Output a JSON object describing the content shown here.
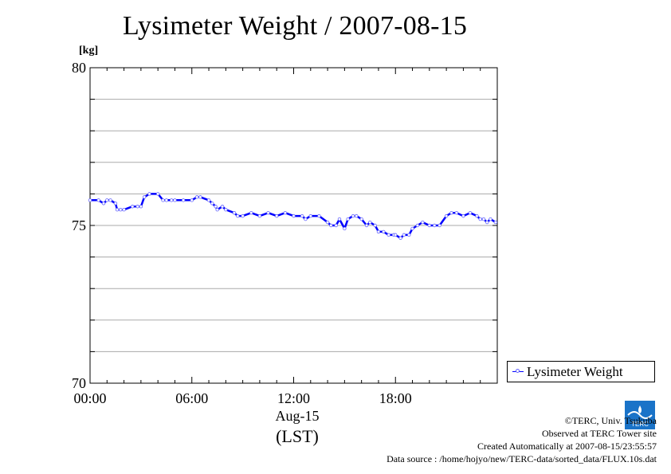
{
  "title": "Lysimeter Weight / 2007-08-15",
  "y_unit": "[kg]",
  "x_date_label": "Aug-15",
  "x_tz_label": "(LST)",
  "credits": {
    "copyright": "©TERC, Univ. Tsukuba",
    "site": "Observed at TERC Tower site",
    "created": "Created Automatically at 2007-08-15/23:55:57",
    "source": "Data source : /home/hojyo/new/TERC-data/sorted_data/FLUX.10s.dat"
  },
  "logo_text": "TERC",
  "colors": {
    "series": "#0000ff",
    "marker": "#6666ff",
    "grid": "#aaaaaa"
  },
  "chart_data": {
    "type": "line",
    "title": "Lysimeter Weight / 2007-08-15",
    "ylabel": "[kg]",
    "xlabel": "(LST)",
    "ylim": [
      70,
      80
    ],
    "xlim": [
      0,
      24
    ],
    "grid": true,
    "legend_position": "bottom-right outside",
    "y_ticks": [
      {
        "value": 70,
        "label": "70"
      },
      {
        "value": 75,
        "label": "75"
      },
      {
        "value": 80,
        "label": "80"
      }
    ],
    "y_grid_step": 1,
    "x_ticks": [
      {
        "value": 0,
        "label": "00:00"
      },
      {
        "value": 6,
        "label": "06:00"
      },
      {
        "value": 12,
        "label": "12:00"
      },
      {
        "value": 18,
        "label": "18:00"
      }
    ],
    "series": [
      {
        "name": "Lysimeter Weight",
        "x": [
          0.0,
          0.5,
          0.8,
          1.0,
          1.2,
          1.5,
          1.6,
          1.8,
          2.0,
          2.5,
          2.8,
          3.0,
          3.2,
          3.5,
          4.0,
          4.3,
          4.5,
          4.8,
          5.0,
          5.5,
          6.0,
          6.3,
          6.5,
          7.0,
          7.2,
          7.4,
          7.5,
          7.8,
          8.0,
          8.5,
          8.7,
          9.0,
          9.5,
          10.0,
          10.5,
          11.0,
          11.5,
          12.0,
          12.5,
          12.7,
          13.0,
          13.5,
          14.0,
          14.2,
          14.5,
          14.7,
          15.0,
          15.2,
          15.5,
          15.7,
          16.0,
          16.3,
          16.5,
          16.8,
          17.0,
          17.3,
          17.6,
          17.9,
          18.0,
          18.3,
          18.5,
          18.8,
          19.0,
          19.3,
          19.6,
          20.0,
          20.3,
          20.6,
          21.0,
          21.3,
          21.6,
          22.0,
          22.4,
          22.8,
          23.0,
          23.2,
          23.4,
          23.6,
          23.9
        ],
        "y": [
          75.8,
          75.8,
          75.7,
          75.8,
          75.8,
          75.7,
          75.5,
          75.5,
          75.5,
          75.6,
          75.6,
          75.6,
          75.9,
          76.0,
          76.0,
          75.8,
          75.8,
          75.8,
          75.8,
          75.8,
          75.8,
          75.9,
          75.9,
          75.8,
          75.7,
          75.6,
          75.5,
          75.6,
          75.5,
          75.4,
          75.3,
          75.3,
          75.4,
          75.3,
          75.4,
          75.3,
          75.4,
          75.3,
          75.3,
          75.2,
          75.3,
          75.3,
          75.1,
          75.0,
          75.0,
          75.2,
          74.9,
          75.2,
          75.3,
          75.3,
          75.2,
          75.0,
          75.1,
          75.0,
          74.8,
          74.8,
          74.7,
          74.7,
          74.7,
          74.6,
          74.7,
          74.7,
          74.9,
          75.0,
          75.1,
          75.0,
          75.0,
          75.0,
          75.3,
          75.4,
          75.4,
          75.3,
          75.4,
          75.3,
          75.2,
          75.2,
          75.1,
          75.2,
          75.1
        ]
      }
    ]
  }
}
